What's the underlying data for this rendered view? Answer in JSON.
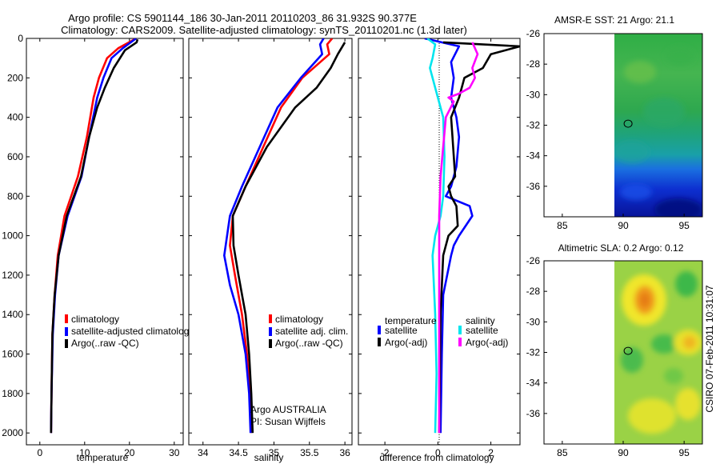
{
  "header": {
    "line1": "Argo profile: CS 5901144_186 30-Jan-2011 20110203_86 31.932S 90.377E",
    "line2": "Climatology: CARS2009. Satellite-adjusted climatology: synTS_20110201.nc (1.3d later)"
  },
  "footer": {
    "stamp": "CSIRO 07-Feb-2011 10:31:07",
    "agency": "Argo AUSTRALIA",
    "pi": "PI: Susan Wijffels"
  },
  "colors": {
    "climatology": "#ff0000",
    "satellite": "#0000ff",
    "argo": "#000000",
    "salinity_satellite": "#00e5ee",
    "salinity_argo": "#ff00ff"
  },
  "chart_data": [
    {
      "type": "line",
      "id": "temperature",
      "xlabel": "temperature",
      "ylabel": "",
      "xlim": [
        -3,
        32
      ],
      "ylim": [
        2060,
        0
      ],
      "xticks": [
        0,
        10,
        20,
        30
      ],
      "yticks": [
        0,
        200,
        400,
        600,
        800,
        1000,
        1200,
        1400,
        1600,
        1800,
        2000
      ],
      "legend": [
        "climatology",
        "satellite-adjusted climatolog",
        "Argo(..raw -QC)"
      ],
      "series": [
        {
          "name": "climatology",
          "color": "#ff0000",
          "x": [
            21.5,
            17.5,
            15.0,
            13.2,
            12.0,
            10.5,
            8.5,
            5.5,
            4.0,
            3.3,
            2.8,
            2.6,
            2.5
          ],
          "y": [
            0,
            50,
            100,
            200,
            300,
            500,
            700,
            900,
            1100,
            1300,
            1500,
            1800,
            2000
          ]
        },
        {
          "name": "satellite-adjusted climatology",
          "color": "#0000ff",
          "x": [
            21.5,
            18.5,
            16.0,
            14.2,
            12.8,
            11.0,
            9.3,
            6.2,
            4.2,
            3.4,
            2.9,
            2.6,
            2.5
          ],
          "y": [
            0,
            50,
            100,
            200,
            300,
            500,
            700,
            900,
            1100,
            1300,
            1500,
            1800,
            2000
          ]
        },
        {
          "name": "Argo(..raw -QC)",
          "color": "#000000",
          "x": [
            21.8,
            21.6,
            19.0,
            16.5,
            14.5,
            12.8,
            11.0,
            9.2,
            6.0,
            4.2,
            3.3,
            2.8,
            2.6,
            2.5
          ],
          "y": [
            5,
            20,
            60,
            150,
            250,
            350,
            500,
            700,
            900,
            1100,
            1300,
            1500,
            1800,
            2000
          ]
        }
      ]
    },
    {
      "type": "line",
      "id": "salinity",
      "xlabel": "salinity",
      "ylabel": "",
      "xlim": [
        33.8,
        36.1
      ],
      "ylim": [
        2060,
        0
      ],
      "xticks": [
        34,
        34.5,
        35,
        35.5,
        36
      ],
      "yticks": [
        0,
        200,
        400,
        600,
        800,
        1000,
        1200,
        1400,
        1600,
        1800,
        2000
      ],
      "legend": [
        "climatology",
        "satellite adj. clim.",
        "Argo(..raw -QC)"
      ],
      "series": [
        {
          "name": "climatology",
          "color": "#ff0000",
          "x": [
            35.82,
            35.75,
            35.78,
            35.4,
            35.1,
            34.85,
            34.6,
            34.42,
            34.38,
            34.45,
            34.55,
            34.62,
            34.66,
            34.68
          ],
          "y": [
            0,
            30,
            80,
            200,
            350,
            550,
            750,
            900,
            1050,
            1200,
            1400,
            1600,
            1800,
            2000
          ]
        },
        {
          "name": "satellite adj. clim.",
          "color": "#0000ff",
          "x": [
            35.7,
            35.65,
            35.68,
            35.38,
            35.05,
            34.8,
            34.55,
            34.38,
            34.3,
            34.38,
            34.5,
            34.6,
            34.65,
            34.67
          ],
          "y": [
            0,
            30,
            80,
            200,
            350,
            550,
            750,
            900,
            1100,
            1250,
            1400,
            1600,
            1800,
            2000
          ]
        },
        {
          "name": "Argo(..raw -QC)",
          "color": "#000000",
          "x": [
            36.0,
            35.9,
            35.8,
            35.6,
            35.3,
            34.9,
            34.6,
            34.42,
            34.43,
            34.5,
            34.6,
            34.65,
            34.68,
            34.7
          ],
          "y": [
            20,
            80,
            150,
            250,
            350,
            550,
            750,
            900,
            1050,
            1200,
            1400,
            1600,
            1800,
            2000
          ]
        }
      ]
    },
    {
      "type": "line",
      "id": "difference",
      "xlabel": "difference from climatology",
      "ylabel": "",
      "xlim": [
        -3,
        3.1
      ],
      "ylim": [
        2060,
        0
      ],
      "xticks": [
        -2,
        0,
        2
      ],
      "yticks": [
        0,
        200,
        400,
        600,
        800,
        1000,
        1200,
        1400,
        1600,
        1800,
        2000
      ],
      "zero_line": true,
      "legend_groups": [
        {
          "title": "temperature",
          "items": [
            "satellite",
            "Argo(-adj)"
          ]
        },
        {
          "title": "salinity",
          "items": [
            "satellite",
            "Argo(-adj)"
          ]
        }
      ],
      "series": [
        {
          "name": "temperature satellite",
          "color": "#0000ff",
          "x": [
            -0.5,
            0.8,
            0.5,
            0.6,
            0.5,
            0.7,
            0.8,
            0.7,
            0.5,
            0.3,
            1.2,
            1.3,
            0.8,
            0.6,
            0.5,
            0.2,
            0.15,
            0.1
          ],
          "y": [
            0,
            40,
            120,
            200,
            300,
            400,
            500,
            650,
            750,
            800,
            850,
            900,
            1000,
            1050,
            1100,
            1300,
            1600,
            2000
          ]
        },
        {
          "name": "temperature Argo(-adj)",
          "color": "#000000",
          "x": [
            0.2,
            3.1,
            2.0,
            1.7,
            1.0,
            0.8,
            0.5,
            0.55,
            0.65,
            0.4,
            0.5,
            0.7,
            0.75,
            0.4,
            0.2,
            0.1,
            0.05
          ],
          "y": [
            20,
            40,
            80,
            150,
            200,
            300,
            400,
            500,
            700,
            750,
            800,
            850,
            950,
            1000,
            1100,
            1400,
            2000
          ]
        },
        {
          "name": "salinity satellite",
          "color": "#00e5ee",
          "x": [
            -0.4,
            -0.1,
            -0.2,
            -0.3,
            -0.1,
            0.2,
            0.25,
            0.2,
            0.1,
            -0.1,
            -0.2,
            -0.1,
            -0.05,
            -0.1
          ],
          "y": [
            0,
            30,
            100,
            150,
            250,
            400,
            600,
            800,
            900,
            1000,
            1100,
            1400,
            1700,
            2000
          ]
        },
        {
          "name": "salinity Argo(-adj)",
          "color": "#ff00ff",
          "x": [
            1.3,
            1.5,
            1.3,
            1.4,
            1.2,
            0.8,
            0.4,
            0.6,
            0.3,
            0.2,
            0.1,
            0.05,
            0.05,
            0.05,
            0.05
          ],
          "y": [
            20,
            80,
            150,
            200,
            250,
            280,
            300,
            320,
            400,
            550,
            700,
            900,
            1100,
            1500,
            2000
          ]
        }
      ]
    },
    {
      "type": "heatmap",
      "id": "sst-map",
      "title": "AMSR-E SST: 21 Argo: 21.1",
      "xlim": [
        83.5,
        96.5
      ],
      "ylim": [
        -38,
        -26
      ],
      "xticks": [
        85,
        90,
        95
      ],
      "yticks": [
        -26,
        -28,
        -30,
        -32,
        -34,
        -36
      ],
      "data_start_lon": 90,
      "float_position": {
        "lon": 90.4,
        "lat": -31.9
      }
    },
    {
      "type": "heatmap",
      "id": "sla-map",
      "title": "Altimetric SLA: 0.2 Argo: 0.12",
      "xlim": [
        83.5,
        96.5
      ],
      "ylim": [
        -38,
        -26
      ],
      "xticks": [
        85,
        90,
        95
      ],
      "yticks": [
        -26,
        -28,
        -30,
        -32,
        -34,
        -36
      ],
      "data_start_lon": 90,
      "float_position": {
        "lon": 90.4,
        "lat": -31.9
      }
    }
  ]
}
